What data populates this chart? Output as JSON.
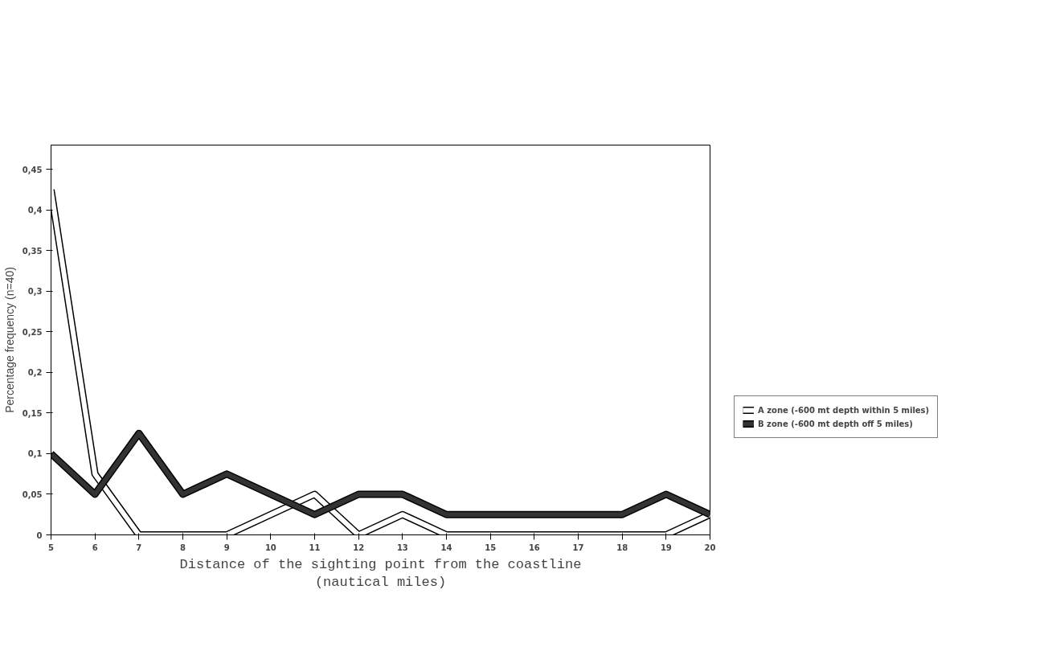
{
  "chart_data": {
    "type": "line",
    "xlabel": "Distance of the sighting point from the coastline\n(nautical miles)",
    "ylabel": "Percentage frequency (n=40)",
    "x": [
      5,
      6,
      7,
      8,
      9,
      10,
      11,
      12,
      13,
      14,
      15,
      16,
      17,
      18,
      19,
      20
    ],
    "series": [
      {
        "name": "A zone (-600 mt depth within 5 miles)",
        "color": "#ffffff",
        "values": [
          0.425,
          0.075,
          0,
          0,
          0,
          0.025,
          0.05,
          0,
          0.025,
          0,
          0,
          0,
          0,
          0,
          0,
          0.025
        ]
      },
      {
        "name": "B zone (-600 mt depth off 5 miles)",
        "color": "#333333",
        "values": [
          0.1,
          0.05,
          0.125,
          0.05,
          0.075,
          0.05,
          0.025,
          0.05,
          0.05,
          0.025,
          0.025,
          0.025,
          0.025,
          0.025,
          0.05,
          0.025
        ]
      }
    ],
    "xlim": [
      5,
      20
    ],
    "ylim": [
      0,
      0.48
    ],
    "xticks": [
      5,
      6,
      7,
      8,
      9,
      10,
      11,
      12,
      13,
      14,
      15,
      16,
      17,
      18,
      19,
      20
    ],
    "yticks": [
      0,
      {
        "value": 0.05,
        "label": "0,05"
      },
      {
        "value": 0.1,
        "label": "0,1"
      },
      {
        "value": 0.15,
        "label": "0,15"
      },
      {
        "value": 0.2,
        "label": "0,2"
      },
      {
        "value": 0.25,
        "label": "0,25"
      },
      {
        "value": 0.3,
        "label": "0,3"
      },
      {
        "value": 0.35,
        "label": "0,35"
      },
      {
        "value": 0.4,
        "label": "0,4"
      },
      {
        "value": 0.45,
        "label": "0,45"
      }
    ],
    "grid": false,
    "legend": "right",
    "marker": "none",
    "line_style": "solid"
  }
}
